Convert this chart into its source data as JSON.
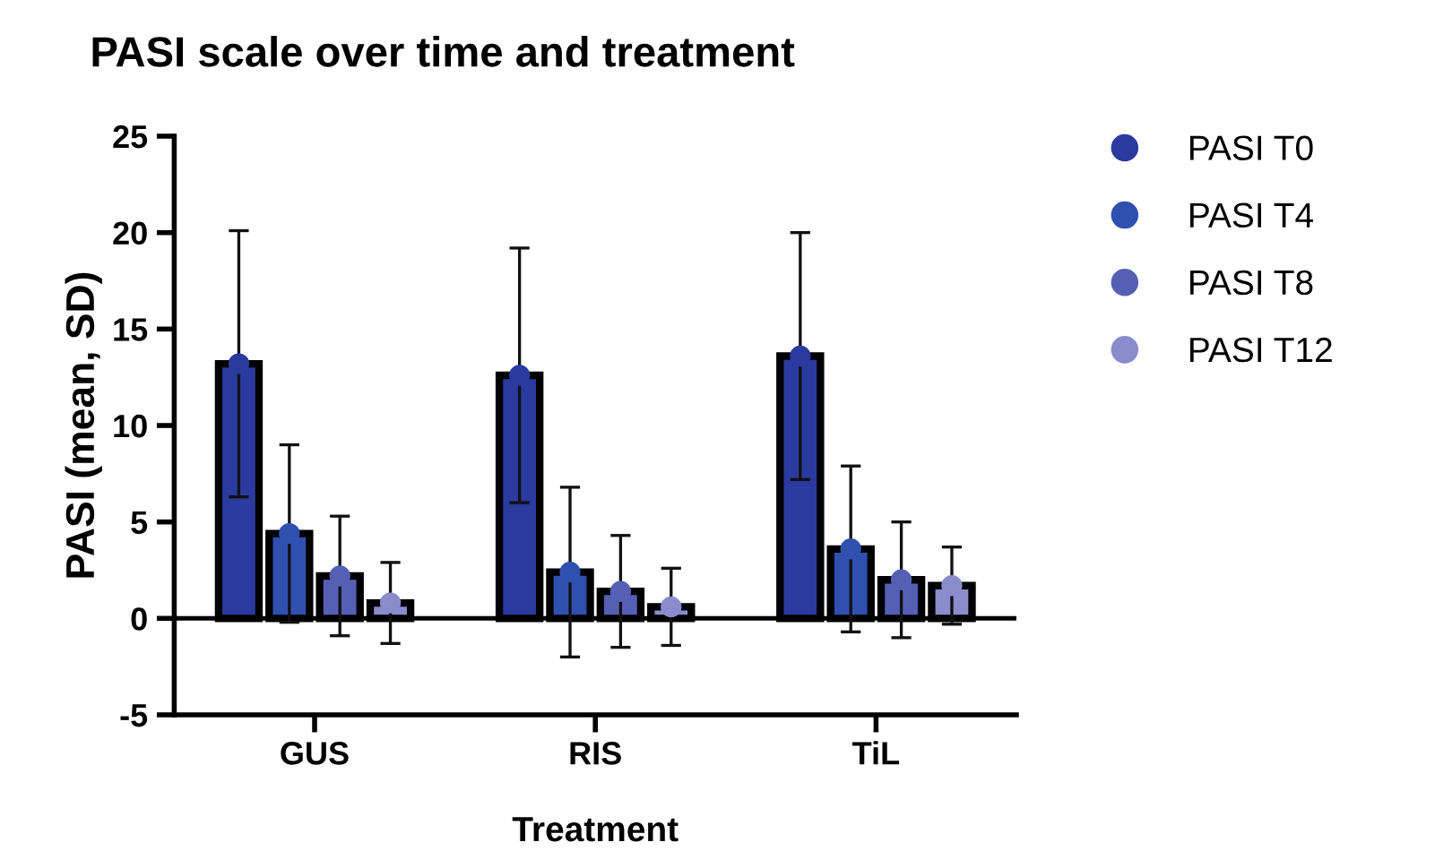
{
  "chart_data": {
    "type": "bar",
    "title": "PASI scale over time and treatment",
    "xlabel": "Treatment",
    "ylabel": "PASI (mean, SD)",
    "categories": [
      "GUS",
      "RIS",
      "TiL"
    ],
    "series": [
      {
        "name": "PASI T0",
        "color": "#2b3a9e",
        "values": [
          13.2,
          12.6,
          13.6
        ],
        "errors": [
          6.9,
          6.6,
          6.4
        ]
      },
      {
        "name": "PASI T4",
        "color": "#3050b0",
        "values": [
          4.4,
          2.4,
          3.6
        ],
        "errors": [
          4.6,
          4.4,
          4.3
        ]
      },
      {
        "name": "PASI T8",
        "color": "#5560b5",
        "values": [
          2.2,
          1.4,
          2.0
        ],
        "errors": [
          3.1,
          2.9,
          3.0
        ]
      },
      {
        "name": "PASI T12",
        "color": "#8a8ccc",
        "values": [
          0.8,
          0.6,
          1.7
        ],
        "errors": [
          2.1,
          2.0,
          2.0
        ]
      },
      {
        "type": "scatter",
        "marker": "circle",
        "x": [
          "GUS",
          "RIS",
          "TiL"
        ],
        "color": "#2b3a9e",
        "values": [
          13.2,
          12.6,
          13.6
        ]
      },
      {
        "type": "scatter",
        "marker": "circle",
        "x": [
          "GUS",
          "RIS",
          "TiL"
        ],
        "color": "#3050b0",
        "values": [
          4.4,
          2.4,
          3.6
        ]
      },
      {
        "type": "scatter",
        "marker": "circle",
        "x": [
          "GUS",
          "RIS",
          "TiL"
        ],
        "color": "#5560b5",
        "values": [
          2.2,
          1.4,
          2.0
        ]
      },
      {
        "type": "scatter",
        "marker": "circle",
        "x": [
          "GUS",
          "RIS",
          "TiL"
        ],
        "color": "#8a8ccc",
        "values": [
          0.8,
          0.6,
          1.7
        ]
      }
    ],
    "ylim": [
      -5,
      25
    ],
    "yticks": [
      -5,
      0,
      5,
      10,
      15,
      20,
      25
    ],
    "ref_lines": [
      {
        "axis": "y",
        "value": 0,
        "color": "#000000"
      }
    ],
    "grid": false,
    "legend": "right"
  }
}
